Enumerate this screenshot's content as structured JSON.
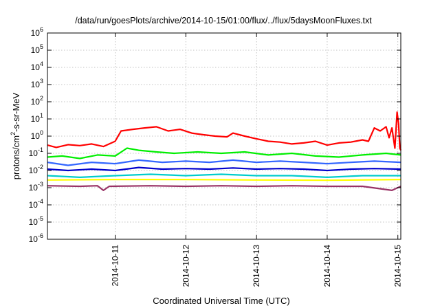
{
  "chart_data": {
    "type": "line",
    "title": "/data/run/goesPlots/archive/2014-10-15/01:00/flux/../flux/5daysMoonFluxes.txt",
    "xlabel": "Coordinated Universal Time (UTC)",
    "ylabel": "protons/cm²-s-sr-MeV",
    "yscale": "log",
    "ylim": [
      1e-06,
      1000000.0
    ],
    "xlim": [
      "2014-10-10T01:00",
      "2014-10-15T01:00"
    ],
    "grid": true,
    "x_ticks": [
      "2014-10-11",
      "2014-10-12",
      "2014-10-13",
      "2014-10-14",
      "2014-10-15"
    ],
    "y_ticks": [
      {
        "value": 1e-06,
        "base": "10",
        "exp": "-6"
      },
      {
        "value": 1e-05,
        "base": "10",
        "exp": "-5"
      },
      {
        "value": 0.0001,
        "base": "10",
        "exp": "-4"
      },
      {
        "value": 0.001,
        "base": "10",
        "exp": "-3"
      },
      {
        "value": 0.01,
        "base": "10",
        "exp": "-2"
      },
      {
        "value": 0.1,
        "base": "10",
        "exp": "-1"
      },
      {
        "value": 1,
        "base": "10",
        "exp": "0"
      },
      {
        "value": 10,
        "base": "10",
        "exp": "1"
      },
      {
        "value": 100,
        "base": "10",
        "exp": "2"
      },
      {
        "value": 1000,
        "base": "10",
        "exp": "3"
      },
      {
        "value": 10000,
        "base": "10",
        "exp": "4"
      },
      {
        "value": 100000,
        "base": "10",
        "exp": "5"
      },
      {
        "value": 1000000,
        "base": "10",
        "exp": "6"
      }
    ],
    "series": [
      {
        "color": "#ff0000",
        "points": [
          [
            "2014-10-10T01:00",
            0.3
          ],
          [
            "2014-10-10T04:00",
            0.22
          ],
          [
            "2014-10-10T08:00",
            0.32
          ],
          [
            "2014-10-10T12:00",
            0.28
          ],
          [
            "2014-10-10T16:00",
            0.35
          ],
          [
            "2014-10-10T20:00",
            0.25
          ],
          [
            "2014-10-11T00:00",
            0.5
          ],
          [
            "2014-10-11T02:00",
            2.0
          ],
          [
            "2014-10-11T06:00",
            2.5
          ],
          [
            "2014-10-11T10:00",
            3.0
          ],
          [
            "2014-10-11T14:00",
            3.5
          ],
          [
            "2014-10-11T18:00",
            2.0
          ],
          [
            "2014-10-11T22:00",
            2.5
          ],
          [
            "2014-10-12T02:00",
            1.5
          ],
          [
            "2014-10-12T06:00",
            1.2
          ],
          [
            "2014-10-12T10:00",
            1.0
          ],
          [
            "2014-10-12T14:00",
            0.9
          ],
          [
            "2014-10-12T16:00",
            1.5
          ],
          [
            "2014-10-12T20:00",
            1.0
          ],
          [
            "2014-10-13T00:00",
            0.7
          ],
          [
            "2014-10-13T04:00",
            0.5
          ],
          [
            "2014-10-13T08:00",
            0.45
          ],
          [
            "2014-10-13T12:00",
            0.35
          ],
          [
            "2014-10-13T16:00",
            0.4
          ],
          [
            "2014-10-13T20:00",
            0.5
          ],
          [
            "2014-10-14T00:00",
            0.3
          ],
          [
            "2014-10-14T04:00",
            0.4
          ],
          [
            "2014-10-14T08:00",
            0.45
          ],
          [
            "2014-10-14T12:00",
            0.6
          ],
          [
            "2014-10-14T14:00",
            0.5
          ],
          [
            "2014-10-14T16:00",
            3.0
          ],
          [
            "2014-10-14T18:00",
            2.0
          ],
          [
            "2014-10-14T20:00",
            3.5
          ],
          [
            "2014-10-14T21:00",
            0.8
          ],
          [
            "2014-10-14T22:00",
            3.0
          ],
          [
            "2014-10-14T23:00",
            0.2
          ],
          [
            "2014-10-14T23:45",
            25
          ],
          [
            "2014-10-15T00:15",
            5.0
          ],
          [
            "2014-10-15T00:40",
            0.2
          ],
          [
            "2014-10-15T01:00",
            0.15
          ]
        ]
      },
      {
        "color": "#00ee00",
        "points": [
          [
            "2014-10-10T01:00",
            0.06
          ],
          [
            "2014-10-10T06:00",
            0.07
          ],
          [
            "2014-10-10T12:00",
            0.05
          ],
          [
            "2014-10-10T18:00",
            0.08
          ],
          [
            "2014-10-11T00:00",
            0.07
          ],
          [
            "2014-10-11T04:00",
            0.2
          ],
          [
            "2014-10-11T08:00",
            0.15
          ],
          [
            "2014-10-11T14:00",
            0.12
          ],
          [
            "2014-10-11T20:00",
            0.1
          ],
          [
            "2014-10-12T04:00",
            0.12
          ],
          [
            "2014-10-12T12:00",
            0.1
          ],
          [
            "2014-10-12T20:00",
            0.12
          ],
          [
            "2014-10-13T04:00",
            0.08
          ],
          [
            "2014-10-13T12:00",
            0.1
          ],
          [
            "2014-10-13T20:00",
            0.07
          ],
          [
            "2014-10-14T04:00",
            0.06
          ],
          [
            "2014-10-14T12:00",
            0.08
          ],
          [
            "2014-10-14T20:00",
            0.1
          ],
          [
            "2014-10-15T01:00",
            0.08
          ]
        ]
      },
      {
        "color": "#3366ff",
        "points": [
          [
            "2014-10-10T01:00",
            0.03
          ],
          [
            "2014-10-10T08:00",
            0.02
          ],
          [
            "2014-10-10T16:00",
            0.03
          ],
          [
            "2014-10-11T00:00",
            0.025
          ],
          [
            "2014-10-11T08:00",
            0.04
          ],
          [
            "2014-10-11T16:00",
            0.03
          ],
          [
            "2014-10-12T00:00",
            0.035
          ],
          [
            "2014-10-12T08:00",
            0.03
          ],
          [
            "2014-10-12T16:00",
            0.04
          ],
          [
            "2014-10-13T00:00",
            0.03
          ],
          [
            "2014-10-13T08:00",
            0.035
          ],
          [
            "2014-10-13T16:00",
            0.03
          ],
          [
            "2014-10-14T00:00",
            0.025
          ],
          [
            "2014-10-14T08:00",
            0.03
          ],
          [
            "2014-10-14T16:00",
            0.035
          ],
          [
            "2014-10-15T01:00",
            0.03
          ]
        ]
      },
      {
        "color": "#0000cc",
        "points": [
          [
            "2014-10-10T01:00",
            0.012
          ],
          [
            "2014-10-10T08:00",
            0.01
          ],
          [
            "2014-10-10T16:00",
            0.012
          ],
          [
            "2014-10-11T00:00",
            0.01
          ],
          [
            "2014-10-11T08:00",
            0.015
          ],
          [
            "2014-10-11T16:00",
            0.012
          ],
          [
            "2014-10-12T00:00",
            0.013
          ],
          [
            "2014-10-12T08:00",
            0.012
          ],
          [
            "2014-10-12T16:00",
            0.014
          ],
          [
            "2014-10-13T00:00",
            0.012
          ],
          [
            "2014-10-13T08:00",
            0.013
          ],
          [
            "2014-10-13T16:00",
            0.012
          ],
          [
            "2014-10-14T00:00",
            0.01
          ],
          [
            "2014-10-14T08:00",
            0.012
          ],
          [
            "2014-10-14T16:00",
            0.013
          ],
          [
            "2014-10-15T01:00",
            0.012
          ]
        ]
      },
      {
        "color": "#00cccc",
        "points": [
          [
            "2014-10-10T01:00",
            0.005
          ],
          [
            "2014-10-10T12:00",
            0.004
          ],
          [
            "2014-10-11T00:00",
            0.005
          ],
          [
            "2014-10-11T12:00",
            0.006
          ],
          [
            "2014-10-12T00:00",
            0.005
          ],
          [
            "2014-10-12T12:00",
            0.006
          ],
          [
            "2014-10-13T00:00",
            0.005
          ],
          [
            "2014-10-13T12:00",
            0.005
          ],
          [
            "2014-10-14T00:00",
            0.004
          ],
          [
            "2014-10-14T12:00",
            0.005
          ],
          [
            "2014-10-15T01:00",
            0.005
          ]
        ]
      },
      {
        "color": "#ffff00",
        "points": [
          [
            "2014-10-10T01:00",
            0.0028
          ],
          [
            "2014-10-11T00:00",
            0.003
          ],
          [
            "2014-10-12T00:00",
            0.003
          ],
          [
            "2014-10-13T00:00",
            0.0028
          ],
          [
            "2014-10-14T00:00",
            0.0027
          ],
          [
            "2014-10-15T01:00",
            0.003
          ]
        ]
      },
      {
        "color": "#993366",
        "points": [
          [
            "2014-10-10T01:00",
            0.0013
          ],
          [
            "2014-10-10T12:00",
            0.0012
          ],
          [
            "2014-10-10T18:00",
            0.0013
          ],
          [
            "2014-10-10T20:00",
            0.0007
          ],
          [
            "2014-10-10T22:00",
            0.0012
          ],
          [
            "2014-10-11T12:00",
            0.0013
          ],
          [
            "2014-10-12T00:00",
            0.0012
          ],
          [
            "2014-10-12T12:00",
            0.0013
          ],
          [
            "2014-10-13T00:00",
            0.0012
          ],
          [
            "2014-10-13T12:00",
            0.0013
          ],
          [
            "2014-10-14T00:00",
            0.0012
          ],
          [
            "2014-10-14T12:00",
            0.0012
          ],
          [
            "2014-10-14T22:00",
            0.0007
          ],
          [
            "2014-10-15T01:00",
            0.0012
          ]
        ]
      }
    ]
  }
}
